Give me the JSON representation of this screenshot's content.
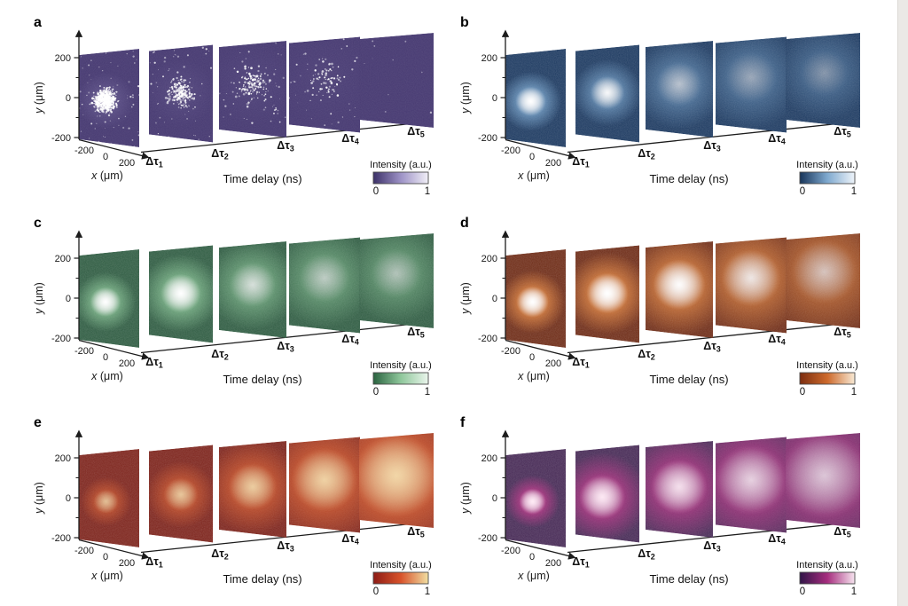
{
  "page": {
    "background": "#ffffff",
    "edge_strip_color": "#ebe9e6"
  },
  "shared": {
    "y_axis": {
      "var": "y",
      "unit": " (μm)"
    },
    "y_ticks": [
      "200",
      "0",
      "-200"
    ],
    "x_axis": {
      "var": "x",
      "unit": " (μm)"
    },
    "x_ticks": [
      "-200",
      "0",
      "200"
    ],
    "time_axis_label": "Time delay (ns)",
    "delays": [
      {
        "base": "Δτ",
        "sub": "1"
      },
      {
        "base": "Δτ",
        "sub": "2"
      },
      {
        "base": "Δτ",
        "sub": "3"
      },
      {
        "base": "Δτ",
        "sub": "4"
      },
      {
        "base": "Δτ",
        "sub": "5"
      }
    ],
    "colorbar": {
      "label": "Intensity (a.u.)",
      "min": "0",
      "max": "1"
    }
  },
  "chart_data": [
    {
      "panel": "a",
      "type": "heatmap",
      "style": "scatter-dots",
      "description": "Sparse photon-count maps, dense bright cluster at first delay decaying to nearly empty by fifth delay",
      "x_range_um": [
        -200,
        200
      ],
      "y_range_um": [
        -200,
        200
      ],
      "intensity_range": [
        0,
        1
      ],
      "colormap": {
        "background": "#473a72",
        "mid": "#9d92c6",
        "high": "#ffffff",
        "bar": [
          "#3c3168",
          "#9d92c6",
          "#f1eff7"
        ]
      },
      "panes": [
        {
          "cx": 0.44,
          "cy": 0.54,
          "r": 0.32,
          "core": 0,
          "halo": 0.25,
          "dots": 640,
          "bg_dots": 70
        },
        {
          "cx": 0.5,
          "cy": 0.5,
          "r": 0.36,
          "core": 0,
          "halo": 0.1,
          "dots": 210,
          "bg_dots": 60
        },
        {
          "cx": 0.5,
          "cy": 0.46,
          "r": 0.42,
          "core": 0,
          "halo": 0.06,
          "dots": 130,
          "bg_dots": 55
        },
        {
          "cx": 0.5,
          "cy": 0.45,
          "r": 0.46,
          "core": 0,
          "halo": 0.04,
          "dots": 70,
          "bg_dots": 45
        },
        {
          "cx": 0.5,
          "cy": 0.45,
          "r": 0.46,
          "core": 0,
          "halo": 0,
          "dots": 0,
          "bg_dots": 10
        }
      ]
    },
    {
      "panel": "b",
      "type": "heatmap",
      "style": "blob",
      "description": "Bright compact spot at first delay expanding into dim diffuse cloud",
      "x_range_um": [
        -200,
        200
      ],
      "y_range_um": [
        -200,
        200
      ],
      "intensity_range": [
        0,
        1
      ],
      "colormap": {
        "background": "#1d3a61",
        "mid": "#7fa9cf",
        "high": "#ffffff",
        "bar": [
          "#173459",
          "#7fa9cf",
          "#eef4fa"
        ]
      },
      "panes": [
        {
          "cx": 0.42,
          "cy": 0.55,
          "r": 0.34,
          "core": 1.0,
          "halo": 0.9
        },
        {
          "cx": 0.5,
          "cy": 0.5,
          "r": 0.36,
          "core": 0.8,
          "halo": 0.75
        },
        {
          "cx": 0.5,
          "cy": 0.45,
          "r": 0.46,
          "core": 0.3,
          "halo": 0.55
        },
        {
          "cx": 0.5,
          "cy": 0.42,
          "r": 0.5,
          "core": 0.18,
          "halo": 0.45
        },
        {
          "cx": 0.52,
          "cy": 0.42,
          "r": 0.44,
          "core": 0.12,
          "halo": 0.38
        }
      ]
    },
    {
      "panel": "c",
      "type": "heatmap",
      "style": "blob",
      "description": "Bright green spot slowly spreading and dimming across delays",
      "x_range_um": [
        -200,
        200
      ],
      "y_range_um": [
        -200,
        200
      ],
      "intensity_range": [
        0,
        1
      ],
      "colormap": {
        "background": "#2f5c42",
        "mid": "#8fc79b",
        "high": "#ffffff",
        "bar": [
          "#2a6340",
          "#8fc79b",
          "#eaf5ec"
        ]
      },
      "panes": [
        {
          "cx": 0.44,
          "cy": 0.55,
          "r": 0.34,
          "core": 1.0,
          "halo": 0.85
        },
        {
          "cx": 0.5,
          "cy": 0.5,
          "r": 0.42,
          "core": 0.95,
          "halo": 0.85
        },
        {
          "cx": 0.5,
          "cy": 0.45,
          "r": 0.46,
          "core": 0.45,
          "halo": 0.65
        },
        {
          "cx": 0.5,
          "cy": 0.42,
          "r": 0.48,
          "core": 0.3,
          "halo": 0.55
        },
        {
          "cx": 0.5,
          "cy": 0.42,
          "r": 0.46,
          "core": 0.25,
          "halo": 0.5
        }
      ]
    },
    {
      "panel": "d",
      "type": "heatmap",
      "style": "blob",
      "description": "Bright orange spot growing larger while staying intense, diffuse by fifth delay",
      "x_range_um": [
        -200,
        200
      ],
      "y_range_um": [
        -200,
        200
      ],
      "intensity_range": [
        0,
        1
      ],
      "colormap": {
        "background": "#6f2d18",
        "mid": "#e08a4b",
        "high": "#ffffff",
        "bar": [
          "#7c2d10",
          "#cd6a2c",
          "#f8e9d4"
        ]
      },
      "panes": [
        {
          "cx": 0.45,
          "cy": 0.55,
          "r": 0.36,
          "core": 1.0,
          "halo": 0.95
        },
        {
          "cx": 0.5,
          "cy": 0.5,
          "r": 0.44,
          "core": 1.0,
          "halo": 0.95
        },
        {
          "cx": 0.5,
          "cy": 0.45,
          "r": 0.52,
          "core": 0.85,
          "halo": 0.85
        },
        {
          "cx": 0.5,
          "cy": 0.42,
          "r": 0.56,
          "core": 0.55,
          "halo": 0.75
        },
        {
          "cx": 0.52,
          "cy": 0.4,
          "r": 0.6,
          "core": 0.3,
          "halo": 0.6
        }
      ]
    },
    {
      "panel": "e",
      "type": "heatmap",
      "style": "blob",
      "description": "Small dim spot growing and brightening into large cloud by fifth delay",
      "x_range_um": [
        -200,
        200
      ],
      "y_range_um": [
        -200,
        200
      ],
      "intensity_range": [
        0,
        1
      ],
      "colormap": {
        "background": "#7d241c",
        "mid": "#e06a3c",
        "high": "#f8dfae",
        "bar": [
          "#8d1c16",
          "#d8532b",
          "#f1dfa2"
        ]
      },
      "panes": [
        {
          "cx": 0.45,
          "cy": 0.55,
          "r": 0.28,
          "core": 0.5,
          "halo": 0.65
        },
        {
          "cx": 0.5,
          "cy": 0.52,
          "r": 0.36,
          "core": 0.55,
          "halo": 0.7
        },
        {
          "cx": 0.5,
          "cy": 0.48,
          "r": 0.48,
          "core": 0.6,
          "halo": 0.75
        },
        {
          "cx": 0.5,
          "cy": 0.45,
          "r": 0.62,
          "core": 0.65,
          "halo": 0.8
        },
        {
          "cx": 0.5,
          "cy": 0.45,
          "r": 0.78,
          "core": 0.7,
          "halo": 0.85
        }
      ]
    },
    {
      "panel": "f",
      "type": "heatmap",
      "style": "blob",
      "description": "Compact bright magenta spot expanding into large diffuse cloud",
      "x_range_um": [
        -200,
        200
      ],
      "y_range_um": [
        -200,
        200
      ],
      "intensity_range": [
        0,
        1
      ],
      "colormap": {
        "background": "#472a56",
        "mid": "#c2408f",
        "high": "#ffeaf5",
        "bar": [
          "#301447",
          "#a62d7e",
          "#f7e4ef"
        ]
      },
      "panes": [
        {
          "cx": 0.45,
          "cy": 0.55,
          "r": 0.3,
          "core": 1.0,
          "halo": 0.9
        },
        {
          "cx": 0.42,
          "cy": 0.55,
          "r": 0.48,
          "core": 0.85,
          "halo": 0.85
        },
        {
          "cx": 0.5,
          "cy": 0.48,
          "r": 0.56,
          "core": 0.7,
          "halo": 0.8
        },
        {
          "cx": 0.5,
          "cy": 0.45,
          "r": 0.68,
          "core": 0.5,
          "halo": 0.75
        },
        {
          "cx": 0.52,
          "cy": 0.45,
          "r": 0.8,
          "core": 0.4,
          "halo": 0.7
        }
      ]
    }
  ]
}
